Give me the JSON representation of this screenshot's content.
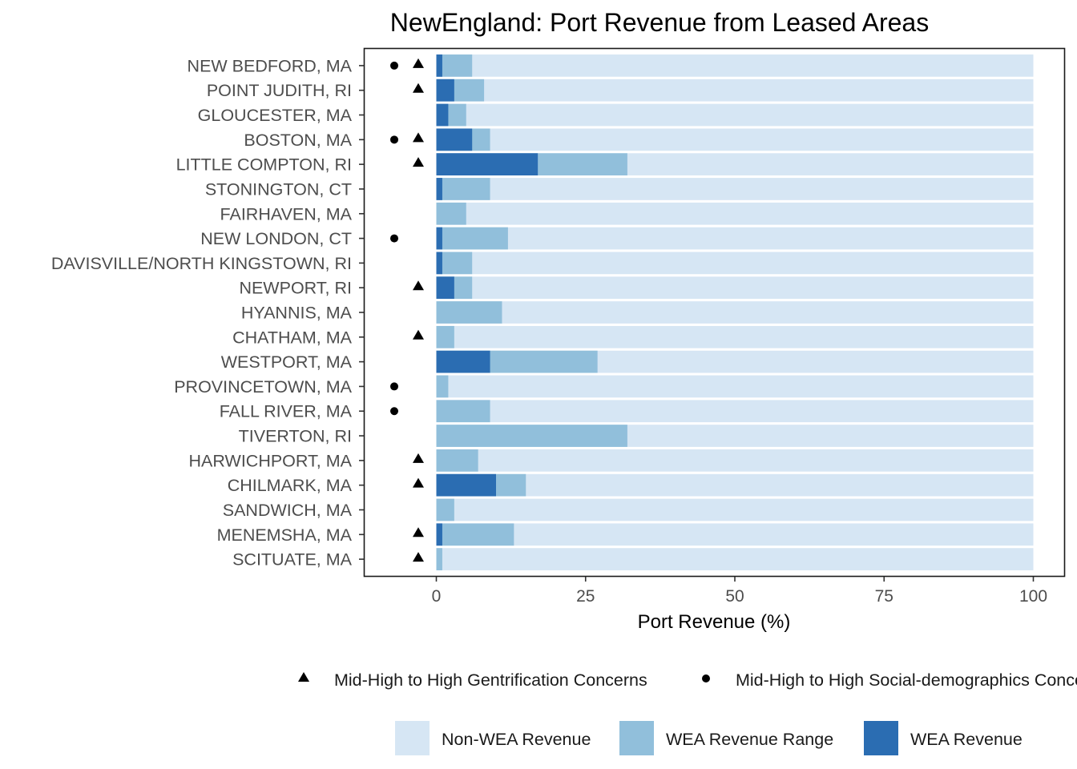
{
  "chart_data": {
    "type": "bar",
    "title": "NewEngland: Port Revenue from Leased Areas",
    "xlabel": "Port Revenue (%)",
    "ylabel": "",
    "xlim": [
      -12,
      105
    ],
    "x_ticks": [
      0,
      25,
      50,
      75,
      100
    ],
    "x_tick_labels": [
      "0",
      "25",
      "50",
      "75",
      "100"
    ],
    "grid": false,
    "orientation": "horizontal",
    "categories": [
      "NEW BEDFORD, MA",
      "POINT JUDITH, RI",
      "GLOUCESTER, MA",
      "BOSTON, MA",
      "LITTLE COMPTON, RI",
      "STONINGTON, CT",
      "FAIRHAVEN, MA",
      "NEW LONDON, CT",
      "DAVISVILLE/NORTH KINGSTOWN, RI",
      "NEWPORT, RI",
      "HYANNIS, MA",
      "CHATHAM, MA",
      "WESTPORT, MA",
      "PROVINCETOWN, MA",
      "FALL RIVER, MA",
      "TIVERTON, RI",
      "HARWICHPORT, MA",
      "CHILMARK, MA",
      "SANDWICH, MA",
      "MENEMSHA, MA",
      "SCITUATE, MA"
    ],
    "series": [
      {
        "name": "Non-WEA Revenue",
        "color": "#d6e6f4",
        "values": [
          100,
          100,
          100,
          100,
          100,
          100,
          100,
          100,
          100,
          100,
          100,
          100,
          100,
          100,
          100,
          100,
          100,
          100,
          100,
          100,
          100
        ]
      },
      {
        "name": "WEA Revenue Range",
        "color": "#91bfdb",
        "values": [
          6,
          8,
          5,
          9,
          32,
          9,
          5,
          12,
          6,
          6,
          11,
          3,
          27,
          2,
          9,
          32,
          7,
          15,
          3,
          13,
          1
        ]
      },
      {
        "name": "WEA Revenue",
        "color": "#2b6db2",
        "values": [
          1,
          3,
          2,
          6,
          17,
          1,
          0,
          1,
          1,
          3,
          0,
          0,
          9,
          0,
          0,
          0,
          0,
          10,
          0,
          1,
          0
        ]
      }
    ],
    "markers": {
      "gentrification": [
        true,
        true,
        false,
        true,
        true,
        false,
        false,
        false,
        false,
        true,
        false,
        true,
        false,
        false,
        false,
        false,
        true,
        true,
        false,
        true,
        true
      ],
      "social_demographics": [
        true,
        false,
        false,
        true,
        false,
        false,
        false,
        true,
        false,
        false,
        false,
        false,
        false,
        true,
        true,
        false,
        false,
        false,
        false,
        false,
        false
      ]
    },
    "marker_legend": [
      {
        "symbol": "triangle",
        "label": "Mid-High to High Gentrification Concerns"
      },
      {
        "symbol": "circle",
        "label": "Mid-High to High Social-demographics Concerns"
      }
    ],
    "legend_position": "bottom"
  }
}
